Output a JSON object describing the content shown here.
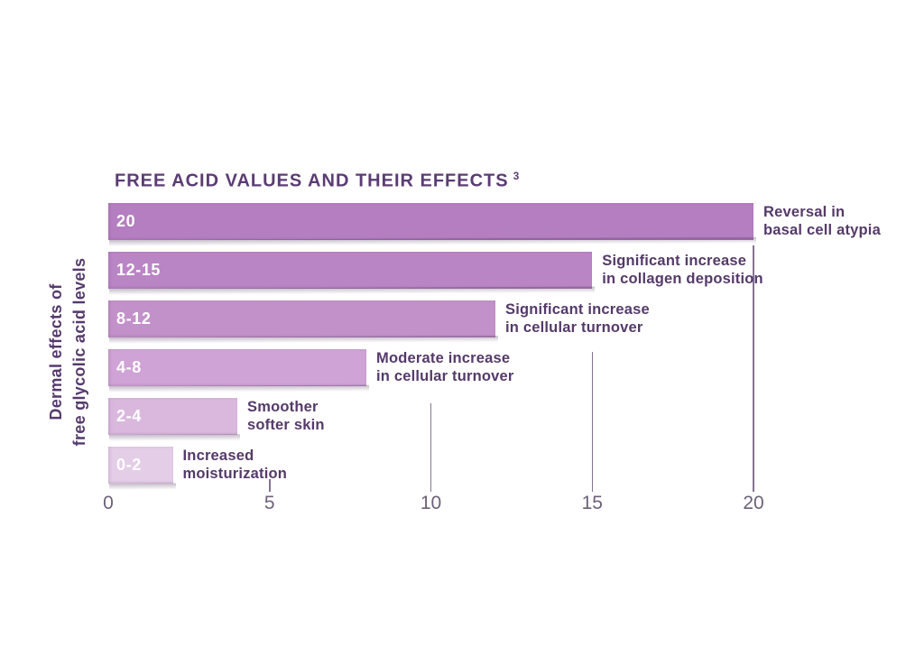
{
  "title": {
    "text": "FREE ACID VALUES AND THEIR EFFECTS",
    "footnote": "3"
  },
  "y_axis_label": {
    "line1": "Dermal effects of",
    "line2": "free glycolic acid levels"
  },
  "colors": {
    "background": "#ffffff",
    "title_text": "#5b3c73",
    "label_text": "#543a69",
    "axis_text": "#6d6079",
    "gridline": "#837491",
    "bar_label_text": "#ffffff"
  },
  "chart_data": {
    "type": "bar",
    "orientation": "horizontal",
    "title": "FREE ACID VALUES AND THEIR EFFECTS",
    "title_footnote": "3",
    "ylabel": "Dermal effects of free glycolic acid levels",
    "xlabel": "",
    "xlim": [
      0,
      20
    ],
    "x_ticks": [
      0,
      5,
      10,
      15,
      20
    ],
    "grid": "partial vertical gridlines below bars",
    "legend": "none",
    "bars": [
      {
        "range_label": "20",
        "value": 20,
        "effect_lines": [
          "Reversal in",
          "basal cell atypia"
        ],
        "color": "#b57ec1"
      },
      {
        "range_label": "12-15",
        "value": 15,
        "effect_lines": [
          "Significant increase",
          "in collagen deposition"
        ],
        "color": "#ba85c5"
      },
      {
        "range_label": "8-12",
        "value": 12,
        "effect_lines": [
          "Significant increase",
          "in cellular turnover"
        ],
        "color": "#c391ca"
      },
      {
        "range_label": "4-8",
        "value": 8,
        "effect_lines": [
          "Moderate increase",
          "in cellular turnover"
        ],
        "color": "#cfa3d5"
      },
      {
        "range_label": "2-4",
        "value": 4,
        "effect_lines": [
          "Smoother",
          "softer skin"
        ],
        "color": "#dab8de"
      },
      {
        "range_label": "0-2",
        "value": 2,
        "effect_lines": [
          "Increased",
          "moisturization"
        ],
        "color": "#e4cde7"
      }
    ]
  }
}
